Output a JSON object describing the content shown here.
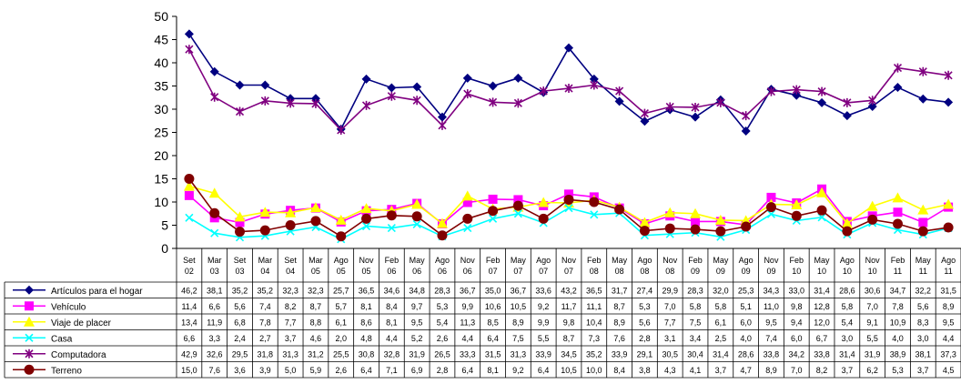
{
  "chart_data": {
    "type": "line",
    "title": "",
    "xlabel": "",
    "ylabel": "",
    "ylim": [
      0,
      50
    ],
    "yticks": [
      "0",
      "5",
      "10",
      "15",
      "20",
      "25",
      "30",
      "35",
      "40",
      "45",
      "50"
    ],
    "grid": false,
    "legend": "data-table-below",
    "categories": [
      [
        "Set",
        "02"
      ],
      [
        "Mar",
        "03"
      ],
      [
        "Set",
        "03"
      ],
      [
        "Mar",
        "04"
      ],
      [
        "Set",
        "04"
      ],
      [
        "Mar",
        "05"
      ],
      [
        "Ago",
        "05"
      ],
      [
        "Nov",
        "05"
      ],
      [
        "Feb",
        "06"
      ],
      [
        "May",
        "06"
      ],
      [
        "Ago",
        "06"
      ],
      [
        "Nov",
        "06"
      ],
      [
        "Feb",
        "07"
      ],
      [
        "May",
        "07"
      ],
      [
        "Ago",
        "07"
      ],
      [
        "Nov",
        "07"
      ],
      [
        "Feb",
        "08"
      ],
      [
        "May",
        "08"
      ],
      [
        "Ago",
        "08"
      ],
      [
        "Nov",
        "08"
      ],
      [
        "Feb",
        "09"
      ],
      [
        "May",
        "09"
      ],
      [
        "Ago",
        "09"
      ],
      [
        "Nov",
        "09"
      ],
      [
        "Feb",
        "10"
      ],
      [
        "May",
        "10"
      ],
      [
        "Ago",
        "10"
      ],
      [
        "Nov",
        "10"
      ],
      [
        "Feb",
        "11"
      ],
      [
        "May",
        "11"
      ],
      [
        "Ago",
        "11"
      ]
    ],
    "series": [
      {
        "name": "Artículos para el hogar",
        "color": "#000080",
        "marker": "diamond",
        "values": [
          46.2,
          38.1,
          35.2,
          35.2,
          32.3,
          32.3,
          25.7,
          36.5,
          34.6,
          34.8,
          28.3,
          36.7,
          35.0,
          36.7,
          33.6,
          43.2,
          36.5,
          31.7,
          27.4,
          29.9,
          28.3,
          32.0,
          25.3,
          34.3,
          33.0,
          31.4,
          28.6,
          30.6,
          34.7,
          32.2,
          31.5
        ],
        "labels": [
          "46,2",
          "38,1",
          "35,2",
          "35,2",
          "32,3",
          "32,3",
          "25,7",
          "36,5",
          "34,6",
          "34,8",
          "28,3",
          "36,7",
          "35,0",
          "36,7",
          "33,6",
          "43,2",
          "36,5",
          "31,7",
          "27,4",
          "29,9",
          "28,3",
          "32,0",
          "25,3",
          "34,3",
          "33,0",
          "31,4",
          "28,6",
          "30,6",
          "34,7",
          "32,2",
          "31,5"
        ]
      },
      {
        "name": "Vehículo",
        "color": "#ff00ff",
        "marker": "square",
        "values": [
          11.4,
          6.6,
          5.6,
          7.4,
          8.2,
          8.7,
          5.7,
          8.1,
          8.4,
          9.7,
          5.3,
          9.9,
          10.6,
          10.5,
          9.2,
          11.7,
          11.1,
          8.7,
          5.3,
          7.0,
          5.8,
          5.8,
          5.1,
          11.0,
          9.8,
          12.8,
          5.8,
          7.0,
          7.8,
          5.6,
          8.9
        ],
        "labels": [
          "11,4",
          "6,6",
          "5,6",
          "7,4",
          "8,2",
          "8,7",
          "5,7",
          "8,1",
          "8,4",
          "9,7",
          "5,3",
          "9,9",
          "10,6",
          "10,5",
          "9,2",
          "11,7",
          "11,1",
          "8,7",
          "5,3",
          "7,0",
          "5,8",
          "5,8",
          "5,1",
          "11,0",
          "9,8",
          "12,8",
          "5,8",
          "7,0",
          "7,8",
          "5,6",
          "8,9"
        ]
      },
      {
        "name": "Viaje de placer",
        "color": "#ffff00",
        "marker": "triangle",
        "values": [
          13.4,
          11.9,
          6.8,
          7.8,
          7.7,
          8.8,
          6.1,
          8.6,
          8.1,
          9.5,
          5.4,
          11.3,
          8.5,
          8.9,
          9.9,
          9.8,
          10.4,
          8.9,
          5.6,
          7.7,
          7.5,
          6.1,
          6.0,
          9.5,
          9.4,
          12.0,
          5.4,
          9.1,
          10.9,
          8.3,
          9.5
        ],
        "labels": [
          "13,4",
          "11,9",
          "6,8",
          "7,8",
          "7,7",
          "8,8",
          "6,1",
          "8,6",
          "8,1",
          "9,5",
          "5,4",
          "11,3",
          "8,5",
          "8,9",
          "9,9",
          "9,8",
          "10,4",
          "8,9",
          "5,6",
          "7,7",
          "7,5",
          "6,1",
          "6,0",
          "9,5",
          "9,4",
          "12,0",
          "5,4",
          "9,1",
          "10,9",
          "8,3",
          "9,5"
        ]
      },
      {
        "name": "Casa",
        "color": "#00ffff",
        "marker": "x",
        "values": [
          6.6,
          3.3,
          2.4,
          2.7,
          3.7,
          4.6,
          2.0,
          4.8,
          4.4,
          5.2,
          2.6,
          4.4,
          6.4,
          7.5,
          5.5,
          8.7,
          7.3,
          7.6,
          2.8,
          3.1,
          3.4,
          2.5,
          4.0,
          7.4,
          6.0,
          6.7,
          3.0,
          5.5,
          4.0,
          3.0,
          4.4
        ],
        "labels": [
          "6,6",
          "3,3",
          "2,4",
          "2,7",
          "3,7",
          "4,6",
          "2,0",
          "4,8",
          "4,4",
          "5,2",
          "2,6",
          "4,4",
          "6,4",
          "7,5",
          "5,5",
          "8,7",
          "7,3",
          "7,6",
          "2,8",
          "3,1",
          "3,4",
          "2,5",
          "4,0",
          "7,4",
          "6,0",
          "6,7",
          "3,0",
          "5,5",
          "4,0",
          "3,0",
          "4,4"
        ]
      },
      {
        "name": "Computadora",
        "color": "#800080",
        "marker": "star",
        "values": [
          42.9,
          32.6,
          29.5,
          31.8,
          31.3,
          31.2,
          25.5,
          30.8,
          32.8,
          31.9,
          26.5,
          33.3,
          31.5,
          31.3,
          33.9,
          34.5,
          35.2,
          33.9,
          29.1,
          30.5,
          30.4,
          31.4,
          28.6,
          33.8,
          34.2,
          33.8,
          31.4,
          31.9,
          38.9,
          38.1,
          37.3
        ],
        "labels": [
          "42,9",
          "32,6",
          "29,5",
          "31,8",
          "31,3",
          "31,2",
          "25,5",
          "30,8",
          "32,8",
          "31,9",
          "26,5",
          "33,3",
          "31,5",
          "31,3",
          "33,9",
          "34,5",
          "35,2",
          "33,9",
          "29,1",
          "30,5",
          "30,4",
          "31,4",
          "28,6",
          "33,8",
          "34,2",
          "33,8",
          "31,4",
          "31,9",
          "38,9",
          "38,1",
          "37,3"
        ]
      },
      {
        "name": "Terreno",
        "color": "#800000",
        "marker": "circle",
        "values": [
          15.0,
          7.6,
          3.6,
          3.9,
          5.0,
          5.9,
          2.6,
          6.4,
          7.1,
          6.9,
          2.8,
          6.4,
          8.1,
          9.2,
          6.4,
          10.5,
          10.0,
          8.4,
          3.8,
          4.3,
          4.1,
          3.7,
          4.7,
          8.9,
          7.0,
          8.2,
          3.7,
          6.2,
          5.3,
          3.7,
          4.5
        ],
        "labels": [
          "15,0",
          "7,6",
          "3,6",
          "3,9",
          "5,0",
          "5,9",
          "2,6",
          "6,4",
          "7,1",
          "6,9",
          "2,8",
          "6,4",
          "8,1",
          "9,2",
          "6,4",
          "10,5",
          "10,0",
          "8,4",
          "3,8",
          "4,3",
          "4,1",
          "3,7",
          "4,7",
          "8,9",
          "7,0",
          "8,2",
          "3,7",
          "6,2",
          "5,3",
          "3,7",
          "4,5"
        ]
      }
    ]
  }
}
